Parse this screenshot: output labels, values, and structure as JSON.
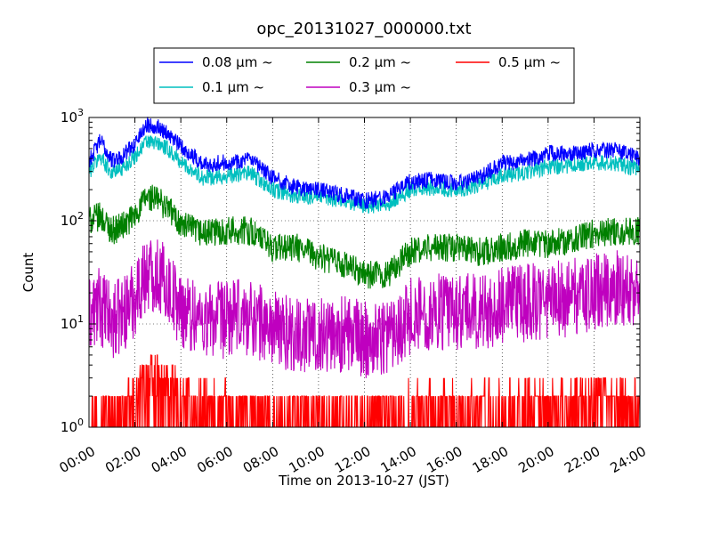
{
  "chart_data": {
    "type": "line",
    "title": "opc_20131027_000000.txt",
    "xlabel": "Time on 2013-10-27 (JST)",
    "ylabel": "Count",
    "xlim": [
      "00:00",
      "24:00"
    ],
    "ylim": [
      1,
      1000
    ],
    "yscale": "log",
    "grid": true,
    "legend_position": "top-center, above plot",
    "x_tick_labels": [
      "00:00",
      "02:00",
      "04:00",
      "06:00",
      "08:00",
      "10:00",
      "12:00",
      "14:00",
      "16:00",
      "18:00",
      "20:00",
      "22:00",
      "24:00"
    ],
    "y_tick_labels": [
      {
        "base": "10",
        "exp": "0"
      },
      {
        "base": "10",
        "exp": "1"
      },
      {
        "base": "10",
        "exp": "2"
      },
      {
        "base": "10",
        "exp": "3"
      }
    ],
    "x_hours": [
      0,
      0.5,
      1,
      1.5,
      2,
      2.5,
      3,
      3.5,
      4,
      5,
      6,
      7,
      8,
      9,
      10,
      11,
      12,
      13,
      14,
      15,
      16,
      17,
      18,
      19,
      20,
      21,
      22,
      23,
      24
    ],
    "series": [
      {
        "name": "0.08 μm ~",
        "color": "#0000ff",
        "values": [
          380,
          600,
          380,
          430,
          560,
          850,
          820,
          680,
          520,
          350,
          370,
          390,
          260,
          210,
          200,
          180,
          155,
          170,
          240,
          250,
          230,
          260,
          360,
          380,
          450,
          450,
          480,
          480,
          400
        ]
      },
      {
        "name": "0.2 μm ~",
        "color": "#008000",
        "values": [
          100,
          110,
          80,
          90,
          110,
          170,
          160,
          130,
          90,
          75,
          80,
          80,
          55,
          55,
          45,
          38,
          30,
          30,
          50,
          55,
          55,
          50,
          55,
          60,
          60,
          65,
          75,
          80,
          80
        ]
      },
      {
        "name": "0.5 μm ~",
        "color": "#ff0000",
        "values": [
          1.3,
          1.3,
          1.2,
          1.2,
          1.5,
          2.5,
          2.2,
          2,
          1.4,
          1.3,
          1.3,
          1.2,
          1.2,
          1.2,
          1.2,
          1.2,
          1.2,
          1.2,
          1.3,
          1.3,
          1.3,
          1.3,
          1.3,
          1.3,
          1.4,
          1.4,
          1.5,
          1.5,
          1.5
        ]
      },
      {
        "name": "0.1 μm ~",
        "color": "#00bfbf",
        "values": [
          300,
          420,
          290,
          330,
          420,
          580,
          560,
          480,
          370,
          260,
          270,
          290,
          200,
          175,
          170,
          160,
          140,
          145,
          200,
          210,
          200,
          220,
          270,
          290,
          330,
          340,
          370,
          360,
          310
        ]
      },
      {
        "name": "0.3 μm ~",
        "color": "#bf00bf",
        "values": [
          12,
          15,
          10,
          13,
          18,
          32,
          30,
          22,
          14,
          11,
          11,
          12,
          9,
          8,
          8,
          8,
          7,
          8,
          12,
          13,
          13,
          13,
          15,
          16,
          17,
          18,
          20,
          22,
          22
        ]
      }
    ]
  }
}
